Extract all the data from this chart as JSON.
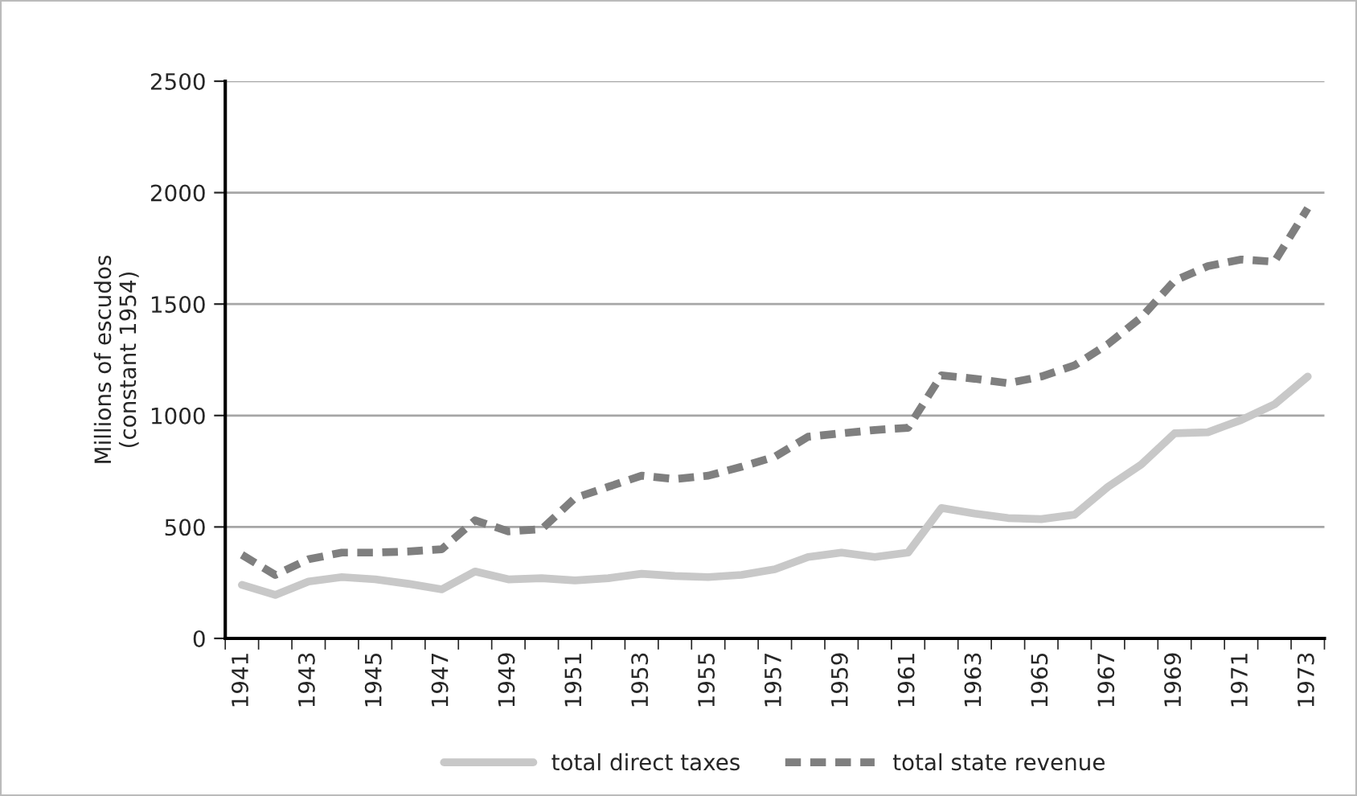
{
  "chart_data": {
    "type": "line",
    "ylabel": "Millions of escudos\n(constant 1954)",
    "categories": [
      "1941",
      null,
      "1943",
      null,
      "1945",
      null,
      "1947",
      null,
      "1949",
      null,
      "1951",
      null,
      "1953",
      null,
      "1955",
      null,
      "1957",
      null,
      "1959",
      null,
      "1961",
      null,
      "1963",
      null,
      "1965",
      null,
      "1967",
      null,
      "1969",
      null,
      "1971",
      null,
      "1973"
    ],
    "series": [
      {
        "name": "total direct taxes",
        "color": "#c8c8c8",
        "line_style": "solid",
        "values": [
          240,
          195,
          255,
          275,
          265,
          245,
          220,
          300,
          265,
          270,
          260,
          270,
          290,
          280,
          275,
          285,
          310,
          365,
          385,
          365,
          385,
          585,
          560,
          540,
          535,
          555,
          680,
          780,
          920,
          925,
          980,
          1050,
          1175
        ]
      },
      {
        "name": "total state revenue",
        "color": "#7f7f7f",
        "line_style": "dashed",
        "values": [
          375,
          285,
          355,
          385,
          385,
          390,
          400,
          530,
          480,
          490,
          630,
          680,
          730,
          715,
          730,
          770,
          815,
          905,
          920,
          935,
          945,
          1180,
          1165,
          1145,
          1175,
          1225,
          1320,
          1440,
          1605,
          1670,
          1700,
          1690,
          1930
        ]
      }
    ],
    "ylim": [
      0,
      2500
    ],
    "yticks": [
      0,
      500,
      1000,
      1500,
      2000,
      2500
    ],
    "grid": "y",
    "legend": "bottom",
    "marker": "none"
  }
}
